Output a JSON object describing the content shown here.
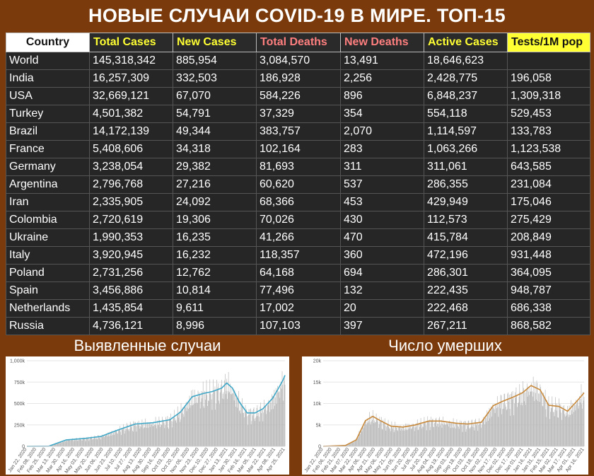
{
  "title": "НОВЫЕ СЛУЧАИ COVID-19 В МИРЕ. ТОП-15",
  "colors": {
    "background": "#7a3a0c",
    "table_bg": "#262626",
    "header_yellow": "#ffff33",
    "header_red": "#ff7f7f",
    "bars": "#b5b5b5",
    "cases_line": "#3fa7c7",
    "deaths_line": "#c8893b"
  },
  "table": {
    "columns": [
      "Country",
      "Total Cases",
      "New Cases",
      "Total Deaths",
      "New Deaths",
      "Active Cases",
      "Tests/1M pop"
    ],
    "rows": [
      [
        "World",
        "145,318,342",
        "885,954",
        "3,084,570",
        "13,491",
        "18,646,623",
        ""
      ],
      [
        "India",
        "16,257,309",
        "332,503",
        "186,928",
        "2,256",
        "2,428,775",
        "196,058"
      ],
      [
        "USA",
        "32,669,121",
        "67,070",
        "584,226",
        "896",
        "6,848,237",
        "1,309,318"
      ],
      [
        "Turkey",
        "4,501,382",
        "54,791",
        "37,329",
        "354",
        "554,118",
        "529,453"
      ],
      [
        "Brazil",
        "14,172,139",
        "49,344",
        "383,757",
        "2,070",
        "1,114,597",
        "133,783"
      ],
      [
        "France",
        "5,408,606",
        "34,318",
        "102,164",
        "283",
        "1,063,266",
        "1,123,538"
      ],
      [
        "Germany",
        "3,238,054",
        "29,382",
        "81,693",
        "311",
        "311,061",
        "643,585"
      ],
      [
        "Argentina",
        "2,796,768",
        "27,216",
        "60,620",
        "537",
        "286,355",
        "231,084"
      ],
      [
        "Iran",
        "2,335,905",
        "24,092",
        "68,366",
        "453",
        "429,949",
        "175,046"
      ],
      [
        "Colombia",
        "2,720,619",
        "19,306",
        "70,026",
        "430",
        "112,573",
        "275,429"
      ],
      [
        "Ukraine",
        "1,990,353",
        "16,235",
        "41,266",
        "470",
        "415,784",
        "208,849"
      ],
      [
        "Italy",
        "3,920,945",
        "16,232",
        "118,357",
        "360",
        "472,196",
        "931,448"
      ],
      [
        "Poland",
        "2,731,256",
        "12,762",
        "64,168",
        "694",
        "286,301",
        "364,095"
      ],
      [
        "Spain",
        "3,456,886",
        "10,814",
        "77,496",
        "132",
        "222,435",
        "948,787"
      ],
      [
        "Netherlands",
        "1,435,854",
        "9,611",
        "17,002",
        "20",
        "222,468",
        "686,338"
      ],
      [
        "Russia",
        "4,736,121",
        "8,996",
        "107,103",
        "397",
        "267,211",
        "868,582"
      ]
    ]
  },
  "chart_data": [
    {
      "type": "bar",
      "title": "Выявленные случаи",
      "xlabel": "",
      "ylabel": "",
      "ylim": [
        0,
        1000000
      ],
      "yticks": [
        0,
        250000,
        500000,
        750000,
        1000000
      ],
      "ytick_labels": [
        "0",
        "250k",
        "500k",
        "750k",
        "1,000k"
      ],
      "x_tick_labels": [
        "Jan 22, 2020",
        "Feb 08, 2020",
        "Feb 25, 2020",
        "Mar 13, 2020",
        "Mar 30, 2020",
        "Apr 16, 2020",
        "May 03, 2020",
        "May 20, 2020",
        "Jun 06, 2020",
        "Jun 23, 2020",
        "Jul 10, 2020",
        "Jul 27, 2020",
        "Aug 13, 2020",
        "Aug 30, 2020",
        "Sep 16, 2020",
        "Oct 03, 2020",
        "Oct 20, 2020",
        "Nov 06, 2020",
        "Nov 23, 2020",
        "Dec 10, 2020",
        "Dec 27, 2020",
        "Jan 13, 2021",
        "Jan 30, 2021",
        "Feb 16, 2021",
        "Mar 05, 2021",
        "Mar 22, 2021",
        "Apr 08, 2021",
        "Apr 25, 2021"
      ],
      "grid": true,
      "smooth_x": [
        "2020-01-22",
        "2020-03-01",
        "2020-04-01",
        "2020-05-01",
        "2020-06-01",
        "2020-07-01",
        "2020-08-01",
        "2020-09-01",
        "2020-10-01",
        "2020-10-20",
        "2020-11-10",
        "2020-12-01",
        "2020-12-15",
        "2021-01-01",
        "2021-01-10",
        "2021-01-20",
        "2021-02-01",
        "2021-02-15",
        "2021-03-01",
        "2021-03-15",
        "2021-04-01",
        "2021-04-10",
        "2021-04-20",
        "2021-04-23"
      ],
      "smooth_y": [
        0,
        2000,
        75000,
        90000,
        115000,
        190000,
        260000,
        275000,
        310000,
        400000,
        580000,
        620000,
        640000,
        680000,
        740000,
        680000,
        520000,
        390000,
        390000,
        440000,
        560000,
        660000,
        780000,
        830000
      ],
      "series": [
        {
          "name": "daily",
          "style": "bars"
        },
        {
          "name": "7-day average",
          "style": "line"
        }
      ]
    },
    {
      "type": "bar",
      "title": "Число умерших",
      "xlabel": "",
      "ylabel": "",
      "ylim": [
        0,
        20000
      ],
      "yticks": [
        0,
        5000,
        10000,
        15000,
        20000
      ],
      "ytick_labels": [
        "0",
        "5k",
        "10k",
        "15k",
        "20k"
      ],
      "x_tick_labels": [
        "Jan 22, 2020",
        "Feb 06, 2020",
        "Feb 21, 2020",
        "Mar 07, 2020",
        "Mar 22, 2020",
        "Apr 06, 2020",
        "Apr 21, 2020",
        "May 06, 2020",
        "May 21, 2020",
        "Jun 05, 2020",
        "Jun 20, 2020",
        "Jul 05, 2020",
        "Jul 20, 2020",
        "Aug 04, 2020",
        "Aug 19, 2020",
        "Sep 03, 2020",
        "Sep 18, 2020",
        "Oct 03, 2020",
        "Oct 18, 2020",
        "Nov 02, 2020",
        "Nov 17, 2020",
        "Dec 02, 2020",
        "Dec 17, 2020",
        "Jan 01, 2021",
        "Jan 16, 2021",
        "Jan 31, 2021",
        "Feb 15, 2021",
        "Mar 02, 2021",
        "Mar 17, 2021",
        "Apr 01, 2021",
        "Apr 16, 2021"
      ],
      "grid": true,
      "smooth_x": [
        "2020-01-22",
        "2020-03-01",
        "2020-03-20",
        "2020-04-05",
        "2020-04-18",
        "2020-05-01",
        "2020-05-20",
        "2020-06-10",
        "2020-07-01",
        "2020-07-25",
        "2020-08-15",
        "2020-09-10",
        "2020-10-01",
        "2020-10-25",
        "2020-11-15",
        "2020-12-01",
        "2020-12-20",
        "2021-01-05",
        "2021-01-20",
        "2021-02-05",
        "2021-02-20",
        "2021-03-10",
        "2021-03-25",
        "2021-04-10",
        "2021-04-23"
      ],
      "smooth_y": [
        0,
        200,
        1500,
        6000,
        7000,
        6000,
        4700,
        4500,
        5000,
        5900,
        5900,
        5400,
        5200,
        5600,
        9500,
        10500,
        11500,
        12500,
        14200,
        13200,
        9600,
        9300,
        8200,
        10500,
        12500
      ],
      "series": [
        {
          "name": "daily",
          "style": "bars"
        },
        {
          "name": "7-day average",
          "style": "line"
        }
      ]
    }
  ]
}
